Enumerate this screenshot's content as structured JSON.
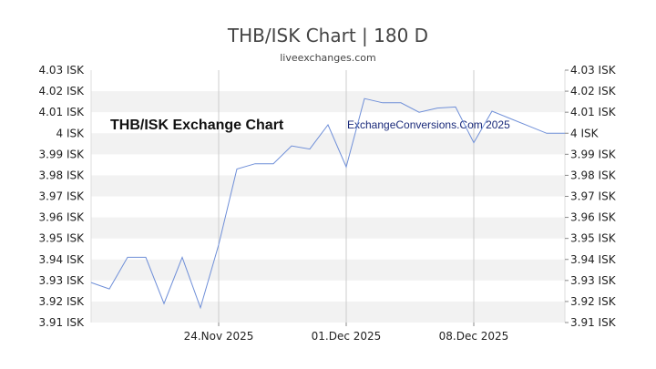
{
  "chart_data": {
    "type": "line",
    "title": "THB/ISK Chart | 180 D",
    "subtitle": "liveexchanges.com",
    "annotations": [
      "THB/ISK Exchange Chart",
      "ExchangeConversions.Com 2025"
    ],
    "ylim": [
      3.91,
      4.03
    ],
    "y_ticks": [
      4.03,
      4.02,
      4.01,
      4.0,
      3.99,
      3.98,
      3.97,
      3.96,
      3.95,
      3.94,
      3.93,
      3.92,
      3.91
    ],
    "y_tick_labels": [
      "4.03 ISK",
      "4.02 ISK",
      "4.01 ISK",
      "4 ISK",
      "3.99 ISK",
      "3.98 ISK",
      "3.97 ISK",
      "3.96 ISK",
      "3.95 ISK",
      "3.94 ISK",
      "3.93 ISK",
      "3.92 ISK",
      "3.91 ISK"
    ],
    "xlim": [
      "2025-11-17",
      "2025-12-13"
    ],
    "x_ticks": [
      "2025-11-24",
      "2025-12-01",
      "2025-12-08"
    ],
    "x_tick_labels": [
      "24.Nov 2025",
      "01.Dec 2025",
      "08.Dec 2025"
    ],
    "grid": "vertical lines at x ticks, alternating horizontal bands",
    "line_color": "#6f8fd8",
    "series": [
      {
        "x": [
          "2025-11-17",
          "2025-11-18",
          "2025-11-19",
          "2025-11-20",
          "2025-11-21",
          "2025-11-22",
          "2025-11-23",
          "2025-11-24",
          "2025-11-25",
          "2025-11-26",
          "2025-11-27",
          "2025-11-28",
          "2025-11-29",
          "2025-11-30",
          "2025-12-01",
          "2025-12-02",
          "2025-12-03",
          "2025-12-04",
          "2025-12-05",
          "2025-12-06",
          "2025-12-07",
          "2025-12-08",
          "2025-12-09",
          "2025-12-10",
          "2025-12-11",
          "2025-12-12",
          "2025-12-13"
        ],
        "values": [
          3.929,
          3.926,
          3.941,
          3.941,
          3.919,
          3.941,
          3.917,
          3.947,
          3.983,
          3.9855,
          3.9855,
          3.994,
          3.9925,
          4.004,
          3.984,
          4.0165,
          4.0145,
          4.0145,
          4.01,
          4.012,
          4.0125,
          3.9955,
          4.0105,
          4.007,
          4.0035,
          4.0,
          4.0
        ]
      }
    ]
  }
}
